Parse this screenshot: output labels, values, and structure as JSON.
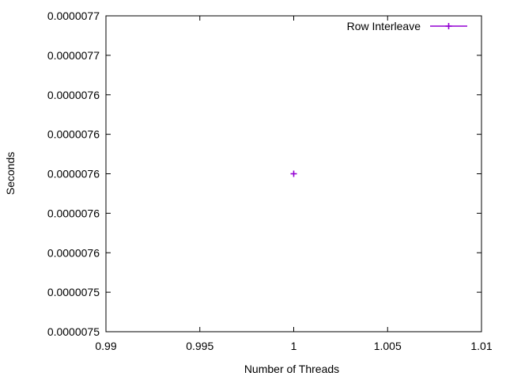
{
  "chart_data": {
    "type": "scatter",
    "title": "",
    "xlabel": "Number of Threads",
    "ylabel": "Seconds",
    "xlim": [
      0.99,
      1.01
    ],
    "ylim": [
      7.5e-06,
      7.7e-06
    ],
    "x_ticks": [
      {
        "value": 0.99,
        "label": "0.99"
      },
      {
        "value": 0.995,
        "label": "0.995"
      },
      {
        "value": 1.0,
        "label": "1"
      },
      {
        "value": 1.005,
        "label": "1.005"
      },
      {
        "value": 1.01,
        "label": "1.01"
      }
    ],
    "y_ticks": [
      {
        "value": 7.5e-06,
        "label": "0.0000075"
      },
      {
        "value": 7.525e-06,
        "label": "0.0000075"
      },
      {
        "value": 7.55e-06,
        "label": "0.0000076"
      },
      {
        "value": 7.575e-06,
        "label": "0.0000076"
      },
      {
        "value": 7.6e-06,
        "label": "0.0000076"
      },
      {
        "value": 7.625e-06,
        "label": "0.0000076"
      },
      {
        "value": 7.65e-06,
        "label": "0.0000076"
      },
      {
        "value": 7.675e-06,
        "label": "0.0000077"
      },
      {
        "value": 7.7e-06,
        "label": "0.0000077"
      }
    ],
    "grid": false,
    "legend_position": "top-right",
    "series": [
      {
        "name": "Row Interleave",
        "color": "#9400d3",
        "marker": "plus",
        "x": [
          1
        ],
        "y": [
          7.6e-06
        ]
      }
    ]
  }
}
